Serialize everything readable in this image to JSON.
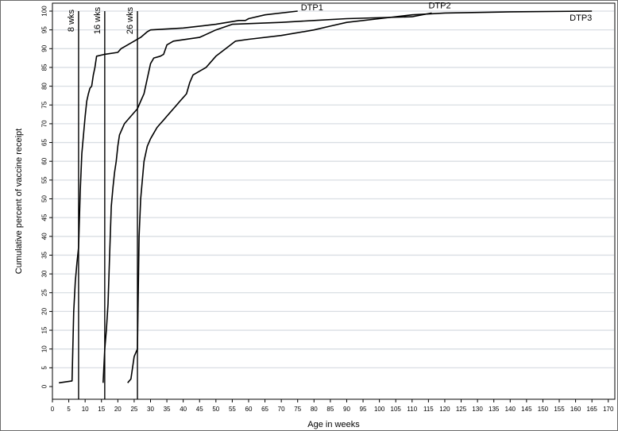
{
  "chart_data": {
    "type": "line",
    "xlabel": "Age in weeks",
    "ylabel": "Cumulative percent of vaccine receipt",
    "xlim": [
      0,
      172
    ],
    "ylim": [
      0,
      100
    ],
    "x_ticks": [
      0,
      5,
      10,
      15,
      20,
      25,
      30,
      35,
      40,
      45,
      50,
      55,
      60,
      65,
      70,
      75,
      80,
      85,
      90,
      95,
      100,
      105,
      110,
      115,
      120,
      125,
      130,
      135,
      140,
      145,
      150,
      155,
      160,
      165,
      170
    ],
    "y_ticks": [
      0,
      5,
      10,
      15,
      20,
      25,
      30,
      35,
      40,
      45,
      50,
      55,
      60,
      65,
      70,
      75,
      80,
      85,
      90,
      95,
      100
    ],
    "grid": "horizontal",
    "reference_lines": [
      {
        "x": 8,
        "label": "8 wks"
      },
      {
        "x": 16,
        "label": "16 wks"
      },
      {
        "x": 26,
        "label": "26 wks"
      }
    ],
    "series": [
      {
        "name": "DTP1",
        "points": [
          [
            2,
            1
          ],
          [
            6,
            1.5
          ],
          [
            6.5,
            20
          ],
          [
            7,
            28
          ],
          [
            7.5,
            33
          ],
          [
            8,
            37
          ],
          [
            8.5,
            52
          ],
          [
            9,
            62
          ],
          [
            9.5,
            67
          ],
          [
            10,
            72
          ],
          [
            10.5,
            76
          ],
          [
            11,
            78
          ],
          [
            11.5,
            79.5
          ],
          [
            12,
            80
          ],
          [
            12.5,
            83
          ],
          [
            13,
            85
          ],
          [
            13.5,
            88
          ],
          [
            16,
            88.5
          ],
          [
            20,
            89
          ],
          [
            21,
            90
          ],
          [
            23,
            91
          ],
          [
            25,
            92
          ],
          [
            27,
            93
          ],
          [
            29,
            94.5
          ],
          [
            30,
            95
          ],
          [
            40,
            95.5
          ],
          [
            50,
            96.5
          ],
          [
            57,
            97.5
          ],
          [
            59,
            97.5
          ],
          [
            60,
            98
          ],
          [
            65,
            99
          ],
          [
            75,
            100
          ]
        ]
      },
      {
        "name": "DTP2",
        "points": [
          [
            15.5,
            1
          ],
          [
            16,
            10
          ],
          [
            16.5,
            15
          ],
          [
            17,
            22
          ],
          [
            17.5,
            35
          ],
          [
            18,
            48
          ],
          [
            18.5,
            53
          ],
          [
            19,
            57
          ],
          [
            19.5,
            60
          ],
          [
            20,
            64
          ],
          [
            20.5,
            67
          ],
          [
            21,
            68
          ],
          [
            22,
            70
          ],
          [
            24,
            72
          ],
          [
            26,
            74
          ],
          [
            27,
            76
          ],
          [
            28,
            78
          ],
          [
            29,
            82
          ],
          [
            30,
            86
          ],
          [
            31,
            87.5
          ],
          [
            33,
            88
          ],
          [
            34,
            88.5
          ],
          [
            35,
            91
          ],
          [
            37,
            92
          ],
          [
            45,
            93
          ],
          [
            50,
            95
          ],
          [
            55,
            96.5
          ],
          [
            70,
            97
          ],
          [
            80,
            97.5
          ],
          [
            90,
            98
          ],
          [
            110,
            98.5
          ],
          [
            116,
            99.5
          ]
        ]
      },
      {
        "name": "DTP3",
        "points": [
          [
            23,
            1
          ],
          [
            24,
            2
          ],
          [
            25,
            8
          ],
          [
            26,
            10
          ],
          [
            26.5,
            40
          ],
          [
            27,
            50
          ],
          [
            27.5,
            55
          ],
          [
            28,
            60
          ],
          [
            29,
            64
          ],
          [
            30,
            66
          ],
          [
            31,
            67.5
          ],
          [
            32,
            69
          ],
          [
            33,
            70
          ],
          [
            34,
            71
          ],
          [
            35,
            72
          ],
          [
            36,
            73
          ],
          [
            37,
            74
          ],
          [
            38,
            75
          ],
          [
            39,
            76
          ],
          [
            40,
            77
          ],
          [
            41,
            78
          ],
          [
            42,
            81
          ],
          [
            43,
            83
          ],
          [
            45,
            84
          ],
          [
            47,
            85
          ],
          [
            48,
            86
          ],
          [
            50,
            88
          ],
          [
            53,
            90
          ],
          [
            56,
            92
          ],
          [
            60,
            92.5
          ],
          [
            70,
            93.5
          ],
          [
            80,
            95
          ],
          [
            85,
            96
          ],
          [
            90,
            97
          ],
          [
            100,
            98
          ],
          [
            110,
            99
          ],
          [
            120,
            99.5
          ],
          [
            140,
            99.8
          ],
          [
            165,
            100
          ]
        ]
      }
    ]
  }
}
